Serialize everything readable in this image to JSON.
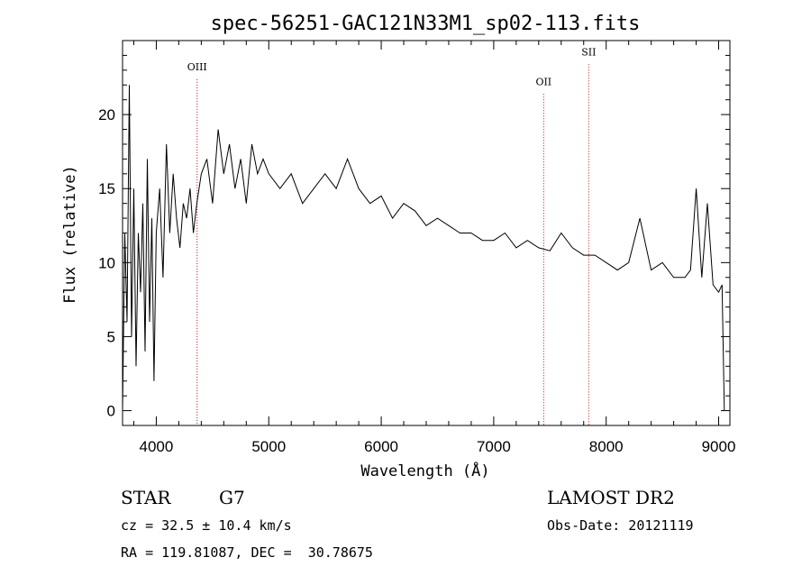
{
  "chart_data": {
    "type": "line",
    "title": "spec-56251-GAC121N33M1_sp02-113.fits",
    "xlabel": "Wavelength (Å)",
    "ylabel": "Flux (relative)",
    "xlim": [
      3700,
      9100
    ],
    "ylim": [
      -1,
      25
    ],
    "xticks": [
      "4000",
      "5000",
      "6000",
      "7000",
      "8000",
      "9000"
    ],
    "yticks": [
      "0",
      "5",
      "10",
      "15",
      "20"
    ],
    "grid": false,
    "legend": "none",
    "spectral_lines": [
      {
        "label": "OIII",
        "wavelength": 4363,
        "label_flux": 23
      },
      {
        "label": "OII",
        "wavelength": 7444,
        "label_flux": 22
      },
      {
        "label": "SII",
        "wavelength": 7845,
        "label_flux": 24
      }
    ],
    "series": [
      {
        "x": [
          3700,
          3720,
          3740,
          3760,
          3780,
          3800,
          3820,
          3840,
          3860,
          3880,
          3900,
          3920,
          3940,
          3960,
          3980,
          4000,
          4030,
          4060,
          4090,
          4120,
          4150,
          4180,
          4210,
          4240,
          4270,
          4300,
          4330,
          4360,
          4400,
          4450,
          4500,
          4550,
          4600,
          4650,
          4700,
          4750,
          4800,
          4850,
          4900,
          4950,
          5000,
          5100,
          5200,
          5300,
          5400,
          5500,
          5600,
          5700,
          5750,
          5800,
          5900,
          6000,
          6100,
          6200,
          6300,
          6400,
          6500,
          6600,
          6700,
          6800,
          6900,
          7000,
          7100,
          7200,
          7300,
          7400,
          7500,
          7600,
          7700,
          7800,
          7900,
          8000,
          8100,
          8200,
          8300,
          8400,
          8500,
          8600,
          8700,
          8750,
          8800,
          8850,
          8900,
          8950,
          9000,
          9030,
          9050
        ],
        "values": [
          0,
          12,
          6,
          22,
          5,
          15,
          3,
          12,
          8,
          14,
          4,
          17,
          6,
          13,
          2,
          12,
          15,
          9,
          18,
          12,
          16,
          13,
          11,
          14,
          13,
          15,
          12,
          14,
          16,
          17,
          14,
          19,
          16,
          18,
          15,
          17,
          14,
          18,
          16,
          17,
          16,
          15,
          16,
          14,
          15,
          16,
          15,
          17,
          16,
          15,
          14,
          14.5,
          13,
          14,
          13.5,
          12.5,
          13,
          12.5,
          12,
          12,
          11.5,
          11.5,
          12,
          11,
          11.5,
          11,
          10.8,
          12,
          11,
          10.5,
          10.5,
          10,
          9.5,
          10,
          13,
          9.5,
          10,
          9,
          9,
          9.5,
          15,
          9,
          14,
          8.5,
          8,
          8.5,
          0
        ]
      }
    ]
  },
  "info": {
    "object_class": "STAR",
    "subclass": "G7",
    "redshift_line": "cz = 32.5 ± 10.4 km/s",
    "coords_line": "RA = 119.81087, DEC =  30.78675",
    "survey": "LAMOST DR2",
    "obs_date": "Obs-Date: 20121119"
  }
}
